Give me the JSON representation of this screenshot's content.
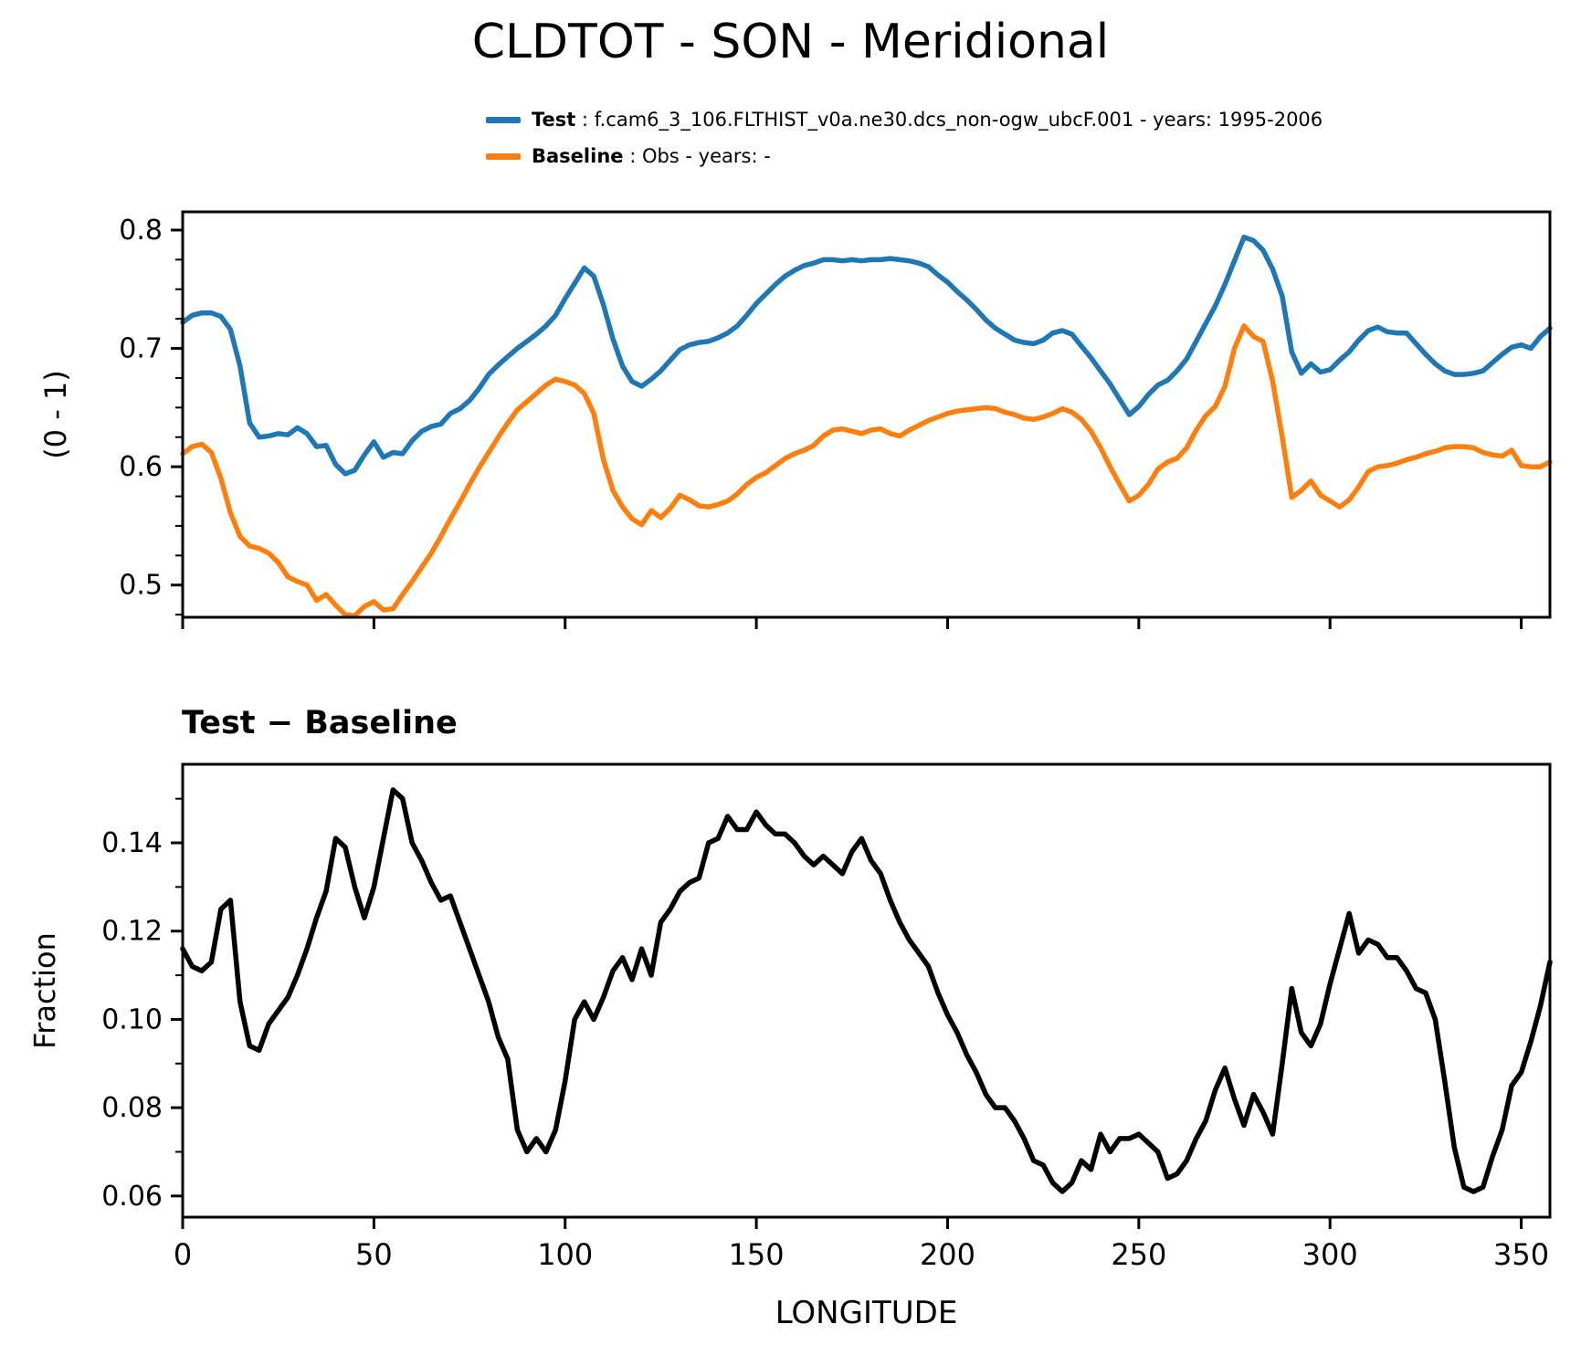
{
  "title": "CLDTOT - SON - Meridional",
  "legend": {
    "items": [
      {
        "name": "Test",
        "rest": " : f.cam6_3_106.FLTHIST_v0a.ne30.dcs_non-ogw_ubcF.001 - years: 1995-2006",
        "color": "#1f77b4"
      },
      {
        "name": "Baseline",
        "rest": " : Obs - years: -",
        "color": "#ff7f0e"
      }
    ]
  },
  "difference_panel": {
    "subtitle": "Test − Baseline"
  },
  "colors": {
    "test": "#1f77b4",
    "baseline": "#ff7f0e",
    "difference": "#000000",
    "axes": "#000000",
    "background": "#ffffff"
  },
  "chart_data": [
    {
      "type": "line",
      "name": "overlay-plot",
      "ylabel": "(0 - 1)",
      "xlabel": "",
      "xlim": [
        0,
        357.5
      ],
      "ylim": [
        0.4728,
        0.8154
      ],
      "yticks": {
        "values": [
          0.5,
          0.6,
          0.7,
          0.8
        ],
        "labels": [
          "0.5",
          "0.6",
          "0.7",
          "0.8"
        ]
      },
      "ytick_minor_step": 0.025,
      "xticks": {
        "values": [
          0,
          50,
          100,
          150,
          200,
          250,
          300,
          350
        ],
        "labels": []
      },
      "grid": false,
      "x_start": 0,
      "x_step": 2.5,
      "series": [
        {
          "name": "Test",
          "color": "#1f77b4",
          "values": [
            0.722,
            0.728,
            0.73,
            0.73,
            0.727,
            0.716,
            0.685,
            0.637,
            0.625,
            0.626,
            0.628,
            0.627,
            0.633,
            0.628,
            0.617,
            0.618,
            0.602,
            0.594,
            0.597,
            0.61,
            0.621,
            0.608,
            0.612,
            0.611,
            0.622,
            0.63,
            0.634,
            0.636,
            0.645,
            0.649,
            0.656,
            0.666,
            0.678,
            0.686,
            0.693,
            0.7,
            0.706,
            0.712,
            0.719,
            0.728,
            0.742,
            0.755,
            0.768,
            0.761,
            0.737,
            0.708,
            0.685,
            0.672,
            0.668,
            0.674,
            0.681,
            0.69,
            0.699,
            0.703,
            0.705,
            0.706,
            0.709,
            0.713,
            0.719,
            0.728,
            0.738,
            0.746,
            0.754,
            0.761,
            0.766,
            0.77,
            0.772,
            0.775,
            0.775,
            0.774,
            0.775,
            0.774,
            0.775,
            0.775,
            0.776,
            0.775,
            0.774,
            0.772,
            0.769,
            0.762,
            0.756,
            0.748,
            0.741,
            0.733,
            0.724,
            0.717,
            0.712,
            0.707,
            0.705,
            0.704,
            0.707,
            0.713,
            0.715,
            0.712,
            0.702,
            0.692,
            0.681,
            0.67,
            0.657,
            0.644,
            0.651,
            0.661,
            0.669,
            0.673,
            0.681,
            0.691,
            0.706,
            0.721,
            0.736,
            0.754,
            0.774,
            0.794,
            0.791,
            0.783,
            0.767,
            0.744,
            0.697,
            0.679,
            0.687,
            0.68,
            0.682,
            0.69,
            0.697,
            0.707,
            0.715,
            0.718,
            0.714,
            0.713,
            0.713,
            0.704,
            0.695,
            0.687,
            0.681,
            0.678,
            0.678,
            0.679,
            0.681,
            0.688,
            0.695,
            0.701,
            0.703,
            0.7,
            0.71,
            0.717
          ]
        },
        {
          "name": "Baseline",
          "color": "#ff7f0e",
          "values": [
            0.611,
            0.617,
            0.619,
            0.612,
            0.59,
            0.561,
            0.541,
            0.533,
            0.531,
            0.527,
            0.519,
            0.507,
            0.503,
            0.5,
            0.487,
            0.492,
            0.483,
            0.475,
            0.474,
            0.482,
            0.486,
            0.479,
            0.48,
            0.492,
            0.503,
            0.515,
            0.527,
            0.541,
            0.556,
            0.57,
            0.585,
            0.599,
            0.612,
            0.625,
            0.637,
            0.648,
            0.655,
            0.662,
            0.669,
            0.674,
            0.672,
            0.669,
            0.662,
            0.645,
            0.606,
            0.58,
            0.566,
            0.556,
            0.551,
            0.563,
            0.557,
            0.565,
            0.576,
            0.572,
            0.567,
            0.566,
            0.568,
            0.571,
            0.577,
            0.585,
            0.591,
            0.595,
            0.601,
            0.607,
            0.611,
            0.614,
            0.618,
            0.626,
            0.631,
            0.632,
            0.63,
            0.628,
            0.631,
            0.632,
            0.628,
            0.626,
            0.631,
            0.635,
            0.639,
            0.642,
            0.645,
            0.647,
            0.648,
            0.649,
            0.65,
            0.649,
            0.646,
            0.644,
            0.641,
            0.64,
            0.642,
            0.645,
            0.649,
            0.646,
            0.64,
            0.63,
            0.616,
            0.6,
            0.585,
            0.571,
            0.576,
            0.585,
            0.598,
            0.604,
            0.607,
            0.616,
            0.631,
            0.643,
            0.651,
            0.668,
            0.7,
            0.719,
            0.71,
            0.706,
            0.672,
            0.625,
            0.574,
            0.58,
            0.588,
            0.576,
            0.571,
            0.566,
            0.572,
            0.583,
            0.596,
            0.6,
            0.601,
            0.603,
            0.606,
            0.608,
            0.611,
            0.613,
            0.616,
            0.617,
            0.617,
            0.616,
            0.612,
            0.61,
            0.609,
            0.614,
            0.601,
            0.6,
            0.6,
            0.604
          ]
        }
      ]
    },
    {
      "type": "line",
      "name": "difference-plot",
      "title": "Test − Baseline",
      "ylabel": "Fraction",
      "xlabel": "LONGITUDE",
      "xlim": [
        0,
        357.5
      ],
      "ylim": [
        0.0552,
        0.1578
      ],
      "yticks": {
        "values": [
          0.06,
          0.08,
          0.1,
          0.12,
          0.14
        ],
        "labels": [
          "0.06",
          "0.08",
          "0.10",
          "0.12",
          "0.14"
        ]
      },
      "ytick_minor_step": 0.01,
      "xticks": {
        "values": [
          0,
          50,
          100,
          150,
          200,
          250,
          300,
          350
        ],
        "labels": [
          "0",
          "50",
          "100",
          "150",
          "200",
          "250",
          "300",
          "350"
        ]
      },
      "grid": false,
      "x_start": 0,
      "x_step": 2.5,
      "series": [
        {
          "name": "Test - Baseline",
          "color": "#000000",
          "values": [
            0.116,
            0.112,
            0.111,
            0.113,
            0.125,
            0.127,
            0.104,
            0.094,
            0.093,
            0.099,
            0.102,
            0.105,
            0.11,
            0.116,
            0.123,
            0.129,
            0.141,
            0.139,
            0.13,
            0.123,
            0.13,
            0.141,
            0.152,
            0.15,
            0.14,
            0.136,
            0.131,
            0.127,
            0.128,
            0.122,
            0.116,
            0.11,
            0.104,
            0.096,
            0.091,
            0.075,
            0.07,
            0.073,
            0.07,
            0.075,
            0.086,
            0.1,
            0.104,
            0.1,
            0.105,
            0.111,
            0.114,
            0.109,
            0.116,
            0.11,
            0.122,
            0.125,
            0.129,
            0.131,
            0.132,
            0.14,
            0.141,
            0.146,
            0.143,
            0.143,
            0.147,
            0.144,
            0.142,
            0.142,
            0.14,
            0.137,
            0.135,
            0.137,
            0.135,
            0.133,
            0.138,
            0.141,
            0.136,
            0.133,
            0.127,
            0.122,
            0.118,
            0.115,
            0.112,
            0.106,
            0.101,
            0.097,
            0.092,
            0.088,
            0.083,
            0.08,
            0.08,
            0.077,
            0.073,
            0.068,
            0.067,
            0.063,
            0.061,
            0.063,
            0.068,
            0.066,
            0.074,
            0.07,
            0.073,
            0.073,
            0.074,
            0.072,
            0.07,
            0.064,
            0.065,
            0.068,
            0.073,
            0.077,
            0.084,
            0.089,
            0.082,
            0.076,
            0.083,
            0.079,
            0.074,
            0.09,
            0.107,
            0.097,
            0.094,
            0.099,
            0.108,
            0.116,
            0.124,
            0.115,
            0.118,
            0.117,
            0.114,
            0.114,
            0.111,
            0.107,
            0.106,
            0.1,
            0.086,
            0.071,
            0.062,
            0.061,
            0.062,
            0.069,
            0.075,
            0.085,
            0.088,
            0.095,
            0.103,
            0.113
          ]
        }
      ]
    }
  ]
}
